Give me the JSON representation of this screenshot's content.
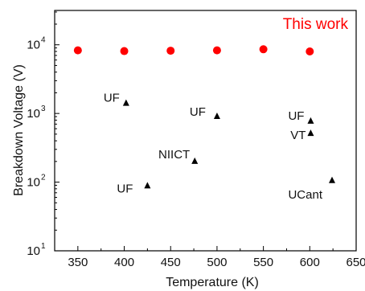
{
  "chart_data": {
    "type": "scatter",
    "xlabel": "Temperature (K)",
    "ylabel": "Breakdown Voltage (V)",
    "xlim": [
      325,
      650
    ],
    "ylim_log10": [
      1,
      4.5
    ],
    "y_scale": "log",
    "x_ticks": [
      350,
      400,
      450,
      500,
      550,
      600,
      650
    ],
    "y_ticks": [
      {
        "exp": 1,
        "base": "10",
        "sup": "1"
      },
      {
        "exp": 2,
        "base": "10",
        "sup": "2"
      },
      {
        "exp": 3,
        "base": "10",
        "sup": "3"
      },
      {
        "exp": 4,
        "base": "10",
        "sup": "4"
      }
    ],
    "grid": false,
    "series": [
      {
        "name": "This work",
        "marker": "circle",
        "color": "#ff0000",
        "points": [
          {
            "x": 350,
            "y": 8300
          },
          {
            "x": 400,
            "y": 8100
          },
          {
            "x": 450,
            "y": 8200
          },
          {
            "x": 500,
            "y": 8300
          },
          {
            "x": 550,
            "y": 8600
          },
          {
            "x": 600,
            "y": 8000
          }
        ]
      },
      {
        "marker": "triangle",
        "color": "#000000",
        "points": [
          {
            "x": 402,
            "y": 1400,
            "label": "UF"
          },
          {
            "x": 500,
            "y": 900,
            "label": "UF"
          },
          {
            "x": 601,
            "y": 770,
            "label": "UF"
          },
          {
            "x": 601,
            "y": 510,
            "label": "VT"
          },
          {
            "x": 476,
            "y": 200,
            "label": "NIICT"
          },
          {
            "x": 425,
            "y": 88,
            "label": "UF"
          },
          {
            "x": 624,
            "y": 105,
            "label": "UCant"
          }
        ]
      }
    ]
  }
}
